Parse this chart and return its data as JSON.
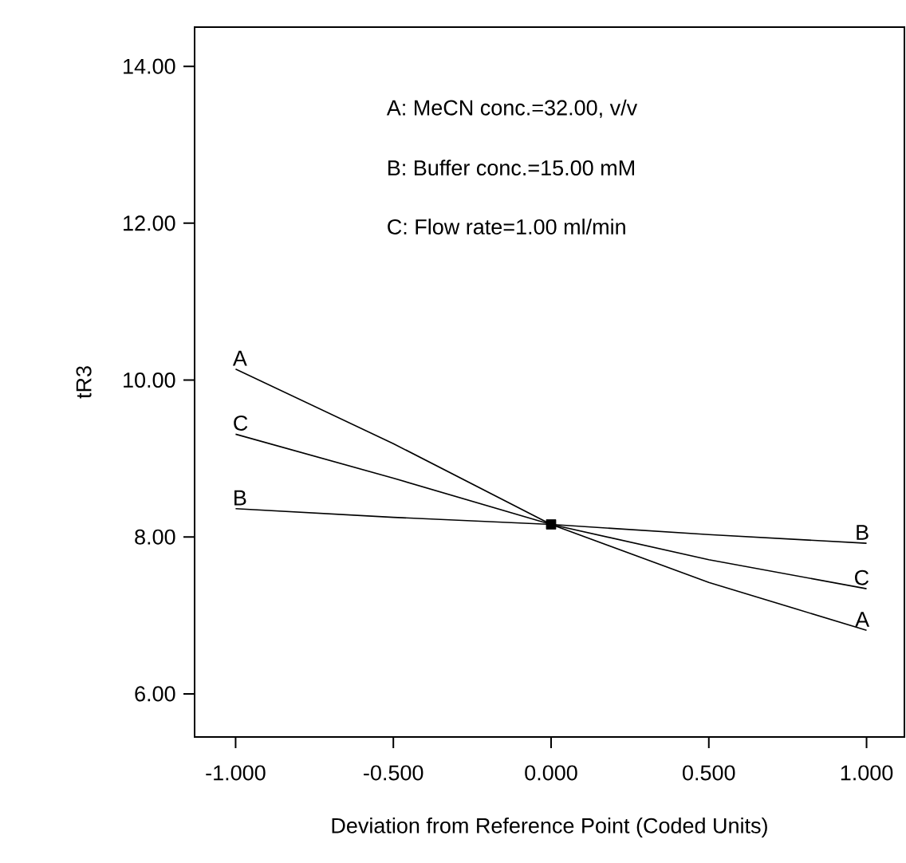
{
  "chart_data": {
    "type": "line",
    "xlabel": "Deviation from Reference Point (Coded Units)",
    "ylabel": "tR3",
    "annotations": [
      "A: MeCN conc.=32.00, v/v",
      "B: Buffer conc.=15.00 mM",
      "C: Flow rate=1.00 ml/min"
    ],
    "x": [
      -1,
      -0.5,
      0,
      0.5,
      1
    ],
    "series": [
      {
        "name": "A",
        "color": "#000000",
        "values": [
          10.14,
          9.19,
          8.16,
          7.42,
          6.81
        ]
      },
      {
        "name": "B",
        "color": "#000000",
        "values": [
          8.36,
          8.25,
          8.16,
          8.03,
          7.92
        ]
      },
      {
        "name": "C",
        "color": "#000000",
        "values": [
          9.31,
          8.75,
          8.16,
          7.71,
          7.34
        ]
      },
      {
        "type": "scatter",
        "marker": "square",
        "color": "#000000",
        "x": [
          0
        ],
        "values": [
          8.16
        ]
      }
    ],
    "xlim": [
      -1.13,
      1.12
    ],
    "ylim": [
      5.45,
      14.5
    ],
    "xticks": [
      {
        "value": -1,
        "label": "-1.000"
      },
      {
        "value": -0.5,
        "label": "-0.500"
      },
      {
        "value": 0,
        "label": "0.000"
      },
      {
        "value": 0.5,
        "label": "0.500"
      },
      {
        "value": 1,
        "label": "1.000"
      }
    ],
    "yticks": [
      {
        "value": 6,
        "label": "6.00"
      },
      {
        "value": 8,
        "label": "8.00"
      },
      {
        "value": 10,
        "label": "10.00"
      },
      {
        "value": 12,
        "label": "12.00"
      },
      {
        "value": 14,
        "label": "14.00"
      }
    ]
  }
}
